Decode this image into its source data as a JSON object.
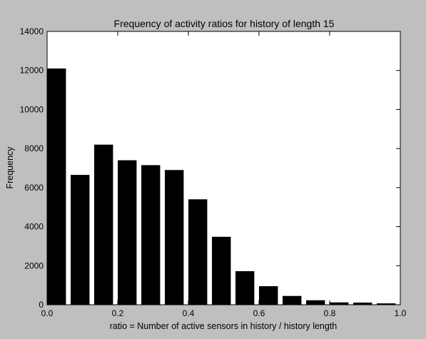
{
  "chart_data": {
    "type": "bar",
    "title": "Frequency of activity ratios for history of length 15",
    "xlabel": "ratio = Number of active sensors in history / history length",
    "ylabel": "Frequency",
    "xlim": [
      0.0,
      1.0
    ],
    "ylim": [
      0,
      14000
    ],
    "xticks": [
      "0.0",
      "0.2",
      "0.4",
      "0.6",
      "0.8",
      "1.0"
    ],
    "yticks": [
      "0",
      "2000",
      "4000",
      "6000",
      "8000",
      "10000",
      "12000",
      "14000"
    ],
    "grid": false,
    "bar_color": "#000000",
    "bin_width": 0.0667,
    "bar_width_fraction": 0.8,
    "bins": [
      0.0,
      0.0667,
      0.1333,
      0.2,
      0.2667,
      0.3333,
      0.4,
      0.4667,
      0.5333,
      0.6,
      0.6667,
      0.7333,
      0.8,
      0.8667,
      0.9333
    ],
    "values": [
      12100,
      6650,
      8200,
      7400,
      7150,
      6900,
      5400,
      3480,
      1720,
      950,
      450,
      230,
      120,
      110,
      70
    ]
  }
}
